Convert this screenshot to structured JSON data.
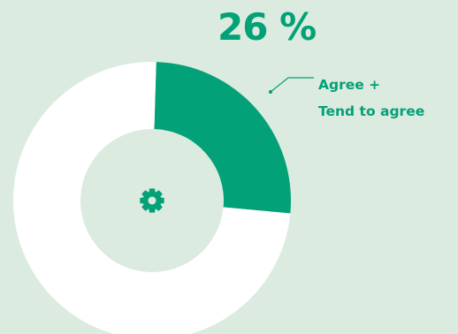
{
  "colors": {
    "background": "#dcebe0",
    "highlight": "#02a177",
    "rest": "#ffffff",
    "text": "#02a177"
  },
  "headline": "26 %",
  "center_icon": "gear-icon",
  "chart_data": {
    "type": "pie",
    "style": "donut",
    "categories": [
      "Agree + Tend to agree",
      ""
    ],
    "values": [
      26,
      74
    ],
    "labels": [
      "Agree +",
      "Tend to agree"
    ],
    "title": ""
  }
}
